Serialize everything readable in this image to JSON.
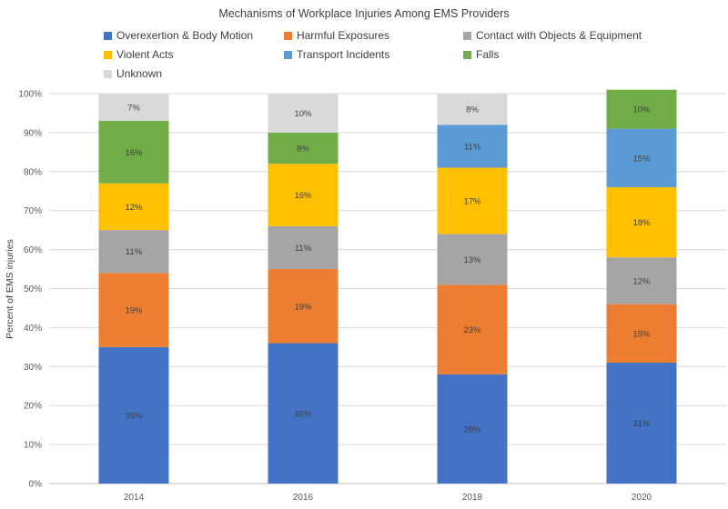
{
  "chart_data": {
    "type": "bar",
    "stacked": true,
    "title": "Mechanisms of Workplace Injuries Among EMS Providers",
    "xlabel": "",
    "ylabel": "Percent of EMS injuries",
    "ylim": [
      0,
      100
    ],
    "y_ticks": [
      "0%",
      "10%",
      "20%",
      "30%",
      "40%",
      "50%",
      "60%",
      "70%",
      "80%",
      "90%",
      "100%"
    ],
    "grid": true,
    "legend_position": "top",
    "categories": [
      "2014",
      "2016",
      "2018",
      "2020"
    ],
    "series": [
      {
        "name": "Overexertion & Body Motion",
        "color": "#4472C4",
        "values": [
          35,
          36,
          28,
          31
        ],
        "labels": [
          "35%",
          "36%",
          "28%",
          "31%"
        ]
      },
      {
        "name": "Harmful Exposures",
        "color": "#ED7D31",
        "values": [
          19,
          19,
          23,
          15
        ],
        "labels": [
          "19%",
          "19%",
          "23%",
          "15%"
        ]
      },
      {
        "name": "Contact with Objects & Equipment",
        "color": "#A5A5A5",
        "values": [
          11,
          11,
          13,
          12
        ],
        "labels": [
          "11%",
          "11%",
          "13%",
          "12%"
        ]
      },
      {
        "name": "Violent Acts",
        "color": "#FFC000",
        "values": [
          12,
          16,
          17,
          18
        ],
        "labels": [
          "12%",
          "16%",
          "17%",
          "18%"
        ]
      },
      {
        "name": "Transport Incidents",
        "color": "#5B9BD5",
        "values": [
          0,
          0,
          11,
          15
        ],
        "labels": [
          "",
          "",
          "11%",
          "15%"
        ]
      },
      {
        "name": "Falls",
        "color": "#70AD47",
        "values": [
          16,
          8,
          0,
          10
        ],
        "labels": [
          "16%",
          "8%",
          "",
          "10%"
        ]
      },
      {
        "name": "Unknown",
        "color": "#D9D9D9",
        "values": [
          7,
          10,
          8,
          0
        ],
        "labels": [
          "7%",
          "10%",
          "8%",
          ""
        ]
      }
    ]
  }
}
